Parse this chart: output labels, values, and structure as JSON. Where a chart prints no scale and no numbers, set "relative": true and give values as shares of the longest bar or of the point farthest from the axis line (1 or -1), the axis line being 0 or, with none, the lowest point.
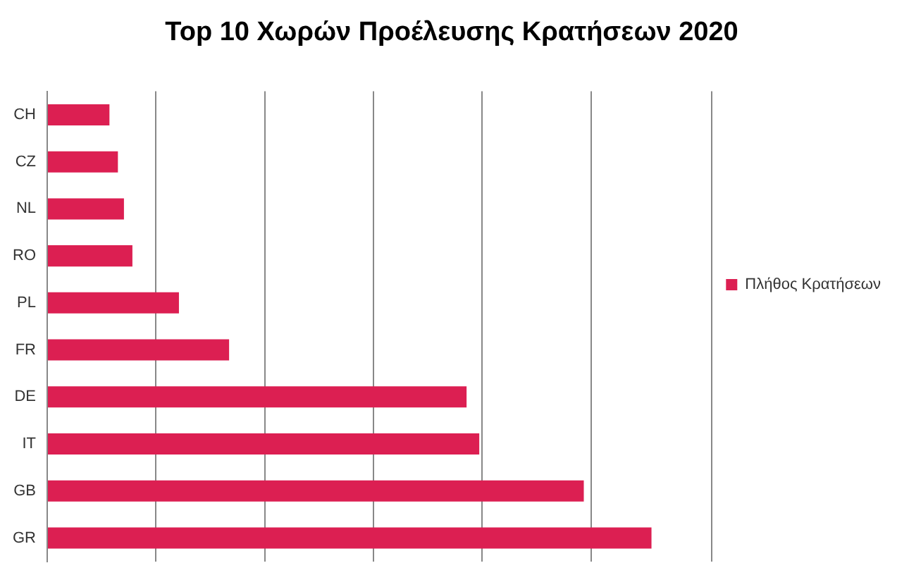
{
  "chart_data": {
    "type": "bar",
    "orientation": "horizontal",
    "relative": true,
    "title": "Top 10 Χωρών Προέλευσης Κρατήσεων 2020",
    "categories": [
      "CH",
      "CZ",
      "NL",
      "RO",
      "PL",
      "FR",
      "DE",
      "IT",
      "GB",
      "GR"
    ],
    "series": [
      {
        "name": "Πλήθος Κρατήσεων",
        "color": "#dc1f52",
        "values": [
          0.103,
          0.117,
          0.127,
          0.141,
          0.218,
          0.301,
          0.694,
          0.715,
          0.888,
          1
        ]
      }
    ],
    "grid": "x",
    "legend": "right"
  }
}
